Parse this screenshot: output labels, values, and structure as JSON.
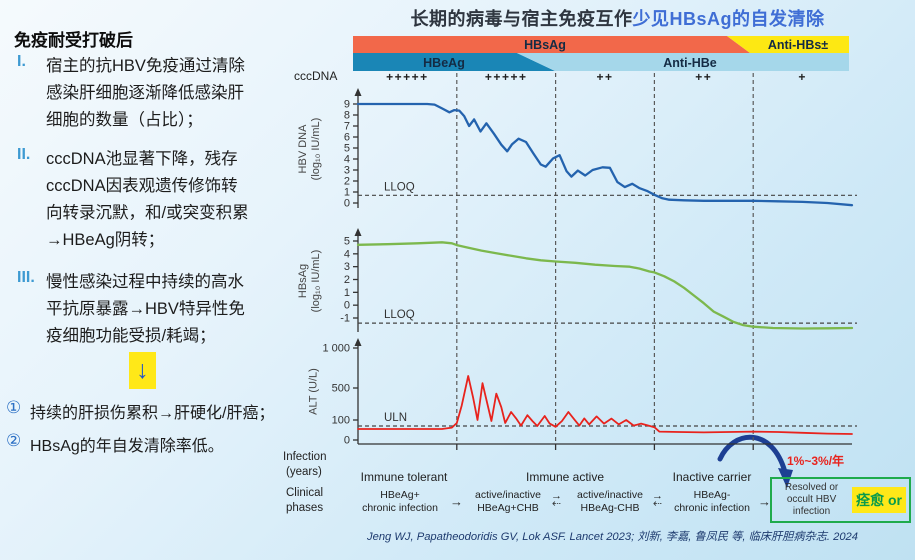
{
  "title": {
    "prefix": "长期的病毒与宿主免疫互作",
    "highlight": "少见HBsAg的自发清除",
    "highlight_color": "#3f6ed5"
  },
  "left_panel": {
    "heading": "免疫耐受打破后",
    "items": [
      {
        "marker": "I.",
        "text": "宿主的抗HBV免疫通过清除感染肝细胞逐渐降低感染肝细胞的数量（占比）；"
      },
      {
        "marker": "II.",
        "text": "cccDNA池显著下降，残存cccDNA因表观遗传修饰转向转录沉默，和/或突变积累→HBeAg阴转；"
      },
      {
        "marker": "III.",
        "text": "慢性感染过程中持续的高水平抗原暴露→HBV特异性免疫细胞功能受损/耗竭；"
      }
    ],
    "arrow_symbol": "↓",
    "conclusions": [
      {
        "marker": "①",
        "text": "持续的肝损伤累积→肝硬化/肝癌；"
      },
      {
        "marker": "②",
        "text": "HBsAg的年自发清除率低。"
      }
    ]
  },
  "serology": {
    "bars": {
      "hbsag": "HBsAg",
      "anti_hbs": "Anti-HBs±",
      "hbeag": "HBeAg",
      "anti_hbe": "Anti-HBe"
    },
    "colors": {
      "hbsag": "#f2684a",
      "anti_hbs": "#fde813",
      "hbeag": "#1a86b6",
      "anti_hbe": "#a5d7ea"
    },
    "cccdna_label": "cccDNA",
    "cccdna_levels": [
      "+++++",
      "+++++",
      "++",
      "++",
      "+"
    ]
  },
  "chart_data": {
    "type": "line",
    "x_axis": {
      "label_line1": "Infection",
      "label_line2": "(years)",
      "dividers_percent": [
        20,
        40,
        60,
        80
      ],
      "x_range_percent": [
        0,
        100
      ]
    },
    "panels": [
      {
        "name": "HBV DNA",
        "ylabel_line1": "HBV DNA",
        "ylabel_line2": "(log₁₀ IU/mL)",
        "yticks": {
          "labels": [
            "9",
            "8",
            "7",
            "6",
            "5",
            "4",
            "3",
            "2",
            "1",
            "0"
          ],
          "values": [
            9,
            8,
            7,
            6,
            5,
            4,
            3,
            2,
            1,
            0
          ]
        },
        "ylim": [
          0,
          9
        ],
        "reference_line": {
          "label": "LLOQ",
          "value": 0.7
        },
        "color": "#2463ae",
        "points": [
          [
            0,
            9
          ],
          [
            14,
            9
          ],
          [
            15.5,
            8.95
          ],
          [
            17,
            8.6
          ],
          [
            18.5,
            8.25
          ],
          [
            19.5,
            8.45
          ],
          [
            20.5,
            8.4
          ],
          [
            21.5,
            7.9
          ],
          [
            22.5,
            7.0
          ],
          [
            23.5,
            7.6
          ],
          [
            24.8,
            6.5
          ],
          [
            26,
            7.25
          ],
          [
            27.5,
            6.3
          ],
          [
            29,
            5.3
          ],
          [
            30.2,
            4.7
          ],
          [
            31.2,
            5.35
          ],
          [
            32.5,
            5.85
          ],
          [
            34,
            5.55
          ],
          [
            35.5,
            4.5
          ],
          [
            37,
            3.5
          ],
          [
            38,
            3.3
          ],
          [
            39.5,
            4.05
          ],
          [
            40.8,
            4.35
          ],
          [
            42.2,
            2.9
          ],
          [
            43.2,
            2.4
          ],
          [
            44.5,
            2.95
          ],
          [
            46,
            2.5
          ],
          [
            47.5,
            3.0
          ],
          [
            49.5,
            3.25
          ],
          [
            51,
            3.2
          ],
          [
            52.5,
            1.9
          ],
          [
            54,
            1.45
          ],
          [
            55.5,
            1.75
          ],
          [
            57,
            1.35
          ],
          [
            58.5,
            1.1
          ],
          [
            60,
            0.75
          ],
          [
            61.5,
            0.45
          ],
          [
            63,
            0.3
          ],
          [
            66,
            0.25
          ],
          [
            70,
            0.2
          ],
          [
            75,
            0.2
          ],
          [
            80,
            0.2
          ],
          [
            85,
            0.15
          ],
          [
            90,
            0.1
          ],
          [
            95,
            0.0
          ],
          [
            100,
            -0.2
          ]
        ]
      },
      {
        "name": "HBsAg",
        "ylabel_line1": "HBsAg",
        "ylabel_line2": "(log₁₀ IU/mL)",
        "yticks": {
          "labels": [
            "5",
            "4",
            "3",
            "2",
            "1",
            "0",
            "-1"
          ],
          "values": [
            5,
            4,
            3,
            2,
            1,
            0,
            -1
          ]
        },
        "ylim": [
          -1,
          5
        ],
        "reference_line": {
          "label": "LLOQ",
          "value": -1.4
        },
        "color": "#7cb84d",
        "points": [
          [
            0,
            4.7
          ],
          [
            6,
            4.75
          ],
          [
            12,
            4.82
          ],
          [
            17,
            4.9
          ],
          [
            19,
            4.82
          ],
          [
            20,
            4.68
          ],
          [
            22,
            4.5
          ],
          [
            25,
            4.25
          ],
          [
            28,
            4.05
          ],
          [
            31,
            3.85
          ],
          [
            34,
            3.65
          ],
          [
            37,
            3.5
          ],
          [
            40,
            3.4
          ],
          [
            44,
            3.3
          ],
          [
            48,
            3.15
          ],
          [
            52,
            3.05
          ],
          [
            55,
            3.0
          ],
          [
            57,
            2.85
          ],
          [
            59,
            2.62
          ],
          [
            60,
            2.55
          ],
          [
            62,
            2.25
          ],
          [
            64,
            1.85
          ],
          [
            66,
            1.35
          ],
          [
            68,
            0.75
          ],
          [
            70,
            0.15
          ],
          [
            72,
            -0.5
          ],
          [
            74,
            -0.9
          ],
          [
            76,
            -1.3
          ],
          [
            78,
            -1.55
          ],
          [
            80,
            -1.68
          ],
          [
            84,
            -1.78
          ],
          [
            90,
            -1.82
          ],
          [
            95,
            -1.8
          ],
          [
            100,
            -1.78
          ]
        ]
      },
      {
        "name": "ALT",
        "ylabel_line1": "ALT (U/L)",
        "ylabel_line2": "",
        "yticks": {
          "labels": [
            "1 000",
            "500",
            "100",
            "0"
          ],
          "values": [
            1000,
            500,
            100,
            0
          ]
        },
        "ylim": [
          0,
          1100
        ],
        "reference_line": {
          "label": "ULN",
          "value": 70
        },
        "color": "#e8231d",
        "points": [
          [
            0,
            55
          ],
          [
            10,
            55
          ],
          [
            17,
            55
          ],
          [
            19,
            62
          ],
          [
            20,
            85
          ],
          [
            21,
            280
          ],
          [
            22.3,
            650
          ],
          [
            23.3,
            380
          ],
          [
            24.2,
            100
          ],
          [
            25.2,
            560
          ],
          [
            26.2,
            300
          ],
          [
            27,
            95
          ],
          [
            28,
            430
          ],
          [
            29,
            260
          ],
          [
            29.8,
            85
          ],
          [
            31,
            200
          ],
          [
            32,
            120
          ],
          [
            33,
            72
          ],
          [
            34.3,
            160
          ],
          [
            35.3,
            95
          ],
          [
            36.3,
            70
          ],
          [
            37.8,
            150
          ],
          [
            38.8,
            82
          ],
          [
            40,
            66
          ],
          [
            41.3,
            95
          ],
          [
            42.6,
            200
          ],
          [
            43.8,
            105
          ],
          [
            44.8,
            72
          ],
          [
            45.8,
            120
          ],
          [
            46.8,
            78
          ],
          [
            48.3,
            145
          ],
          [
            49.8,
            82
          ],
          [
            51.3,
            118
          ],
          [
            52.8,
            78
          ],
          [
            54.3,
            100
          ],
          [
            55.8,
            72
          ],
          [
            57.3,
            82
          ],
          [
            58.8,
            72
          ],
          [
            60,
            64
          ],
          [
            61,
            42
          ],
          [
            65,
            40
          ],
          [
            70,
            38
          ],
          [
            75,
            40
          ],
          [
            80,
            42
          ],
          [
            85,
            40
          ],
          [
            90,
            36
          ],
          [
            95,
            32
          ],
          [
            100,
            30
          ]
        ]
      }
    ]
  },
  "clinical": {
    "row_label_line1": "Clinical",
    "row_label_line2": "phases",
    "phases": [
      "Immune tolerant",
      "Immune active",
      "Inactive carrier"
    ],
    "states": [
      {
        "line1": "HBeAg+",
        "line2": "chronic infection"
      },
      {
        "line1": "active/inactive",
        "line2": "HBeAg+CHB"
      },
      {
        "line1": "active/inactive",
        "line2": "HBeAg-CHB"
      },
      {
        "line1": "HBeAg-",
        "line2": "chronic infection"
      }
    ],
    "arrow_right": "→",
    "arrow_left_dashed": "⇠",
    "resolved_box": {
      "line1": "Resolved or",
      "line2": "occult HBV",
      "line3": "infection"
    },
    "cure_label": "痊愈 or",
    "clearance_rate": "1%~3%/年"
  },
  "reference": "Jeng WJ, Papatheodoridis GV, Lok ASF. Lancet 2023;    刘新, 李嘉, 鲁凤民 等,  临床肝胆病杂志. 2024"
}
